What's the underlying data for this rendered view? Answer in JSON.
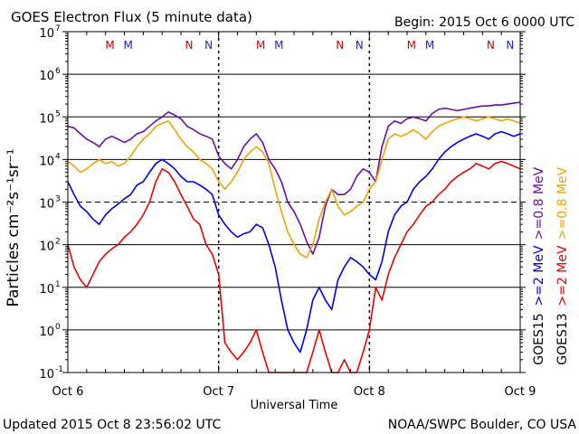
{
  "header": {
    "title": "GOES Electron Flux (5 minute data)",
    "begin": "Begin: 2015 Oct 6 0000 UTC"
  },
  "footer": {
    "updated": "Updated 2015 Oct  8 23:56:02 UTC",
    "source": "NOAA/SWPC Boulder, CO USA"
  },
  "colors": {
    "purple": "#6a0dad",
    "orange": "#f5a000",
    "blue": "#0000e6",
    "red": "#ee0000",
    "marker_m": "#d40000",
    "marker_m_blue": "#2020d0",
    "marker_n": "#d40000",
    "marker_n_blue": "#2020d0"
  },
  "chart_data": {
    "type": "line",
    "xlabel": "Universal Time",
    "ylabel": "Particles cm⁻²s⁻¹sr⁻¹",
    "x_unit": "hours since 2015 Oct 6 0000 UTC",
    "xlim": [
      0,
      72
    ],
    "ylim": [
      0.1,
      10000000
    ],
    "yscale": "log",
    "x_ticks": [
      {
        "x": 0,
        "label": "Oct 6"
      },
      {
        "x": 24,
        "label": "Oct 7"
      },
      {
        "x": 48,
        "label": "Oct 8"
      },
      {
        "x": 72,
        "label": "Oct 9"
      }
    ],
    "y_ticks": [
      {
        "exp": -1,
        "label": "10"
      },
      {
        "exp": 0,
        "label": "10"
      },
      {
        "exp": 1,
        "label": "10"
      },
      {
        "exp": 2,
        "label": "10"
      },
      {
        "exp": 3,
        "label": "10"
      },
      {
        "exp": 4,
        "label": "10"
      },
      {
        "exp": 5,
        "label": "10"
      },
      {
        "exp": 6,
        "label": "10"
      },
      {
        "exp": 7,
        "label": "10"
      }
    ],
    "y_exponents": [
      "-1",
      "0",
      "1",
      "2",
      "3",
      "4",
      "5",
      "6",
      "7"
    ],
    "threshold_dashed": 1000,
    "markers": [
      {
        "x": 6.7,
        "label": "M",
        "color": "marker_m"
      },
      {
        "x": 9.6,
        "label": "M",
        "color": "marker_m_blue"
      },
      {
        "x": 19.3,
        "label": "N",
        "color": "marker_n"
      },
      {
        "x": 22.4,
        "label": "N",
        "color": "marker_n_blue"
      },
      {
        "x": 30.7,
        "label": "M",
        "color": "marker_m"
      },
      {
        "x": 33.6,
        "label": "M",
        "color": "marker_m_blue"
      },
      {
        "x": 43.3,
        "label": "N",
        "color": "marker_n"
      },
      {
        "x": 46.4,
        "label": "N",
        "color": "marker_n_blue"
      },
      {
        "x": 54.7,
        "label": "M",
        "color": "marker_m"
      },
      {
        "x": 57.6,
        "label": "M",
        "color": "marker_m_blue"
      },
      {
        "x": 67.3,
        "label": "N",
        "color": "marker_n"
      },
      {
        "x": 70.4,
        "label": "N",
        "color": "marker_n_blue"
      }
    ],
    "legend": [
      {
        "text": ">=0.8 MeV",
        "color": "purple"
      },
      {
        "text": ">=0.8 MeV",
        "color": "orange"
      },
      {
        "text": ">=2 MeV",
        "color": "blue"
      },
      {
        "text": ">=2 MeV",
        "color": "red"
      },
      {
        "text": "GOES15",
        "color": "black"
      },
      {
        "text": "GOES13",
        "color": "black"
      }
    ],
    "series": [
      {
        "name": "GOES15 >=0.8 MeV",
        "color": "purple",
        "x": [
          0,
          1,
          2,
          3,
          4,
          5,
          6,
          7,
          8,
          9,
          10,
          11,
          12,
          13,
          14,
          15,
          16,
          17,
          18,
          19,
          20,
          21,
          22,
          23,
          24,
          25,
          26,
          27,
          28,
          29,
          30,
          31,
          32,
          33,
          34,
          35,
          36,
          37,
          38,
          39,
          40,
          41,
          42,
          43,
          44,
          45,
          46,
          47,
          48,
          49,
          50,
          51,
          52,
          53,
          54,
          55,
          56,
          57,
          58,
          59,
          60,
          61,
          62,
          63,
          64,
          65,
          66,
          67,
          68,
          69,
          70,
          71,
          72
        ],
        "y": [
          60000,
          55000,
          40000,
          30000,
          25000,
          20000,
          30000,
          35000,
          30000,
          25000,
          30000,
          40000,
          45000,
          60000,
          80000,
          100000,
          130000,
          110000,
          90000,
          60000,
          50000,
          40000,
          35000,
          30000,
          12000,
          8000,
          6000,
          10000,
          20000,
          30000,
          40000,
          25000,
          10000,
          6000,
          3000,
          1000,
          600,
          300,
          120,
          60,
          150,
          800,
          2000,
          1500,
          1500,
          2000,
          4000,
          6000,
          5000,
          3000,
          20000,
          60000,
          80000,
          70000,
          90000,
          100000,
          90000,
          80000,
          120000,
          150000,
          160000,
          150000,
          140000,
          150000,
          160000,
          170000,
          180000,
          180000,
          190000,
          190000,
          200000,
          210000,
          220000
        ]
      },
      {
        "name": "GOES13 >=0.8 MeV",
        "color": "orange",
        "x": [
          0,
          1,
          2,
          3,
          4,
          5,
          6,
          7,
          8,
          9,
          10,
          11,
          12,
          13,
          14,
          15,
          16,
          17,
          18,
          19,
          20,
          21,
          22,
          23,
          24,
          25,
          26,
          27,
          28,
          29,
          30,
          31,
          32,
          33,
          34,
          35,
          36,
          37,
          38,
          39,
          40,
          41,
          42,
          43,
          44,
          45,
          46,
          47,
          48,
          49,
          50,
          51,
          52,
          53,
          54,
          55,
          56,
          57,
          58,
          59,
          60,
          61,
          62,
          63,
          64,
          65,
          66,
          67,
          68,
          69,
          70,
          71,
          72
        ],
        "y": [
          9000,
          7000,
          5000,
          6000,
          8000,
          10000,
          8000,
          9000,
          7000,
          8000,
          12000,
          20000,
          30000,
          40000,
          60000,
          70000,
          80000,
          50000,
          30000,
          20000,
          15000,
          10000,
          8000,
          6000,
          3000,
          2000,
          3000,
          5000,
          10000,
          15000,
          20000,
          15000,
          8000,
          2000,
          600,
          200,
          100,
          60,
          50,
          100,
          400,
          1000,
          2000,
          800,
          500,
          600,
          800,
          1000,
          2000,
          3000,
          10000,
          30000,
          40000,
          35000,
          40000,
          50000,
          40000,
          30000,
          45000,
          60000,
          70000,
          80000,
          90000,
          100000,
          90000,
          80000,
          90000,
          100000,
          90000,
          80000,
          90000,
          80000,
          70000
        ]
      },
      {
        "name": "GOES15 >=2 MeV",
        "color": "blue",
        "x": [
          0,
          1,
          2,
          3,
          4,
          5,
          6,
          7,
          8,
          9,
          10,
          11,
          12,
          13,
          14,
          15,
          16,
          17,
          18,
          19,
          20,
          21,
          22,
          23,
          24,
          25,
          26,
          27,
          28,
          29,
          30,
          31,
          32,
          33,
          34,
          35,
          36,
          37,
          38,
          39,
          40,
          41,
          42,
          43,
          44,
          45,
          46,
          47,
          48,
          49,
          50,
          51,
          52,
          53,
          54,
          55,
          56,
          57,
          58,
          59,
          60,
          61,
          62,
          63,
          64,
          65,
          66,
          67,
          68,
          69,
          70,
          71,
          72
        ],
        "y": [
          3000,
          1500,
          800,
          600,
          400,
          300,
          500,
          700,
          900,
          1200,
          1500,
          2500,
          3000,
          5000,
          8000,
          10000,
          8000,
          6000,
          4000,
          3000,
          3000,
          2500,
          2000,
          1500,
          500,
          300,
          200,
          150,
          180,
          200,
          300,
          250,
          100,
          30,
          5,
          1,
          0.5,
          0.3,
          1,
          5,
          10,
          5,
          3,
          15,
          30,
          50,
          40,
          30,
          20,
          15,
          40,
          200,
          500,
          800,
          1000,
          2000,
          3000,
          4000,
          6000,
          10000,
          15000,
          20000,
          25000,
          30000,
          35000,
          40000,
          35000,
          30000,
          40000,
          45000,
          40000,
          35000,
          40000
        ]
      },
      {
        "name": "GOES13 >=2 MeV",
        "color": "red",
        "x": [
          0,
          1,
          2,
          3,
          4,
          5,
          6,
          7,
          8,
          9,
          10,
          11,
          12,
          13,
          14,
          15,
          16,
          17,
          18,
          19,
          20,
          21,
          22,
          23,
          24,
          25,
          26,
          27,
          28,
          29,
          30,
          31,
          32,
          33,
          34,
          35,
          36,
          37,
          38,
          39,
          40,
          41,
          42,
          43,
          44,
          45,
          46,
          47,
          48,
          49,
          50,
          51,
          52,
          53,
          54,
          55,
          56,
          57,
          58,
          59,
          60,
          61,
          62,
          63,
          64,
          65,
          66,
          67,
          68,
          69,
          70,
          71,
          72
        ],
        "y": [
          100,
          30,
          15,
          10,
          20,
          40,
          60,
          80,
          100,
          150,
          200,
          300,
          500,
          1000,
          3000,
          6000,
          5000,
          3000,
          1500,
          800,
          400,
          300,
          100,
          60,
          20,
          0.5,
          0.3,
          0.2,
          0.3,
          0.5,
          1,
          0.3,
          0.1,
          0.1,
          0.1,
          0.1,
          0.1,
          0.1,
          0.1,
          0.3,
          1,
          0.3,
          0.1,
          0.1,
          0.2,
          0.1,
          0.1,
          0.3,
          1,
          10,
          5,
          20,
          50,
          100,
          200,
          300,
          500,
          800,
          1000,
          1500,
          2000,
          3000,
          4000,
          5000,
          6000,
          8000,
          7000,
          6000,
          8000,
          9000,
          8000,
          7000,
          6000
        ]
      }
    ]
  }
}
